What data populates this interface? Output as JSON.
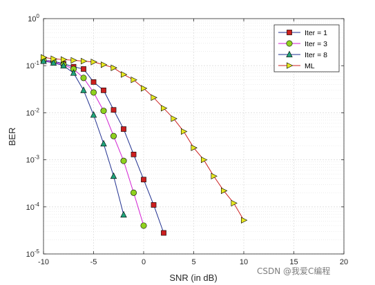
{
  "chart_data": {
    "type": "line",
    "xlabel": "SNR (in dB)",
    "ylabel": "BER",
    "xlim": [
      -10,
      20
    ],
    "ylim": [
      1e-05,
      1
    ],
    "yscale": "log",
    "xticks": [
      -10,
      -5,
      0,
      5,
      10,
      15,
      20
    ],
    "xtick_labels": [
      "-10",
      "-5",
      "0",
      "5",
      "10",
      "15",
      "20"
    ],
    "yticks": [
      1e-05,
      0.0001,
      0.001,
      0.01,
      0.1,
      1
    ],
    "ytick_labels": [
      {
        "base": "10",
        "exp": "-5"
      },
      {
        "base": "10",
        "exp": "-4"
      },
      {
        "base": "10",
        "exp": "-3"
      },
      {
        "base": "10",
        "exp": "-2"
      },
      {
        "base": "10",
        "exp": "-1"
      },
      {
        "base": "10",
        "exp": "0"
      }
    ],
    "grid": true,
    "minor_grid": true,
    "legend_position": "top-right",
    "series": [
      {
        "name": "Iter = 1",
        "marker": "square",
        "line_color": "#1f2f8f",
        "marker_color": "#cc1f1f",
        "x": [
          -10,
          -9,
          -8,
          -7,
          -6,
          -5,
          -4,
          -3,
          -2,
          -1,
          0,
          1,
          2
        ],
        "y": [
          0.13,
          0.125,
          0.11,
          0.095,
          0.085,
          0.045,
          0.03,
          0.0115,
          0.0045,
          0.0013,
          0.00038,
          0.00011,
          2.8e-05
        ]
      },
      {
        "name": "Iter = 3",
        "marker": "circle",
        "line_color": "#d21fd2",
        "marker_color": "#8fd11f",
        "x": [
          -10,
          -9,
          -8,
          -7,
          -6,
          -5,
          -4,
          -3,
          -2,
          -1,
          0
        ],
        "y": [
          0.13,
          0.12,
          0.105,
          0.085,
          0.055,
          0.027,
          0.011,
          0.0032,
          0.00095,
          0.0002,
          4e-05
        ]
      },
      {
        "name": "Iter = 8",
        "marker": "triangle-up",
        "line_color": "#1f2f8f",
        "marker_color": "#1fa37a",
        "x": [
          -10,
          -9,
          -8,
          -7,
          -6,
          -5,
          -4,
          -3,
          -2
        ],
        "y": [
          0.125,
          0.115,
          0.1,
          0.07,
          0.03,
          0.009,
          0.0022,
          0.00045,
          6.8e-05
        ]
      },
      {
        "name": "ML",
        "marker": "triangle-right",
        "line_color": "#cc1f1f",
        "marker_color": "#e6e61f",
        "x": [
          -10,
          -9,
          -8,
          -7,
          -6,
          -5,
          -4,
          -3,
          -2,
          -1,
          0,
          1,
          2,
          3,
          4,
          5,
          6,
          7,
          8,
          9,
          10
        ],
        "y": [
          0.15,
          0.14,
          0.135,
          0.13,
          0.125,
          0.12,
          0.105,
          0.09,
          0.065,
          0.05,
          0.033,
          0.021,
          0.0125,
          0.0075,
          0.004,
          0.0018,
          0.001,
          0.00045,
          0.00022,
          0.00012,
          5.2e-05
        ]
      }
    ]
  },
  "watermark": "CSDN @我爱C编程",
  "colors": {
    "background": "#ffffff",
    "axes_bg": "#ffffff",
    "grid": "#d9d9d9",
    "axis": "#262626"
  }
}
